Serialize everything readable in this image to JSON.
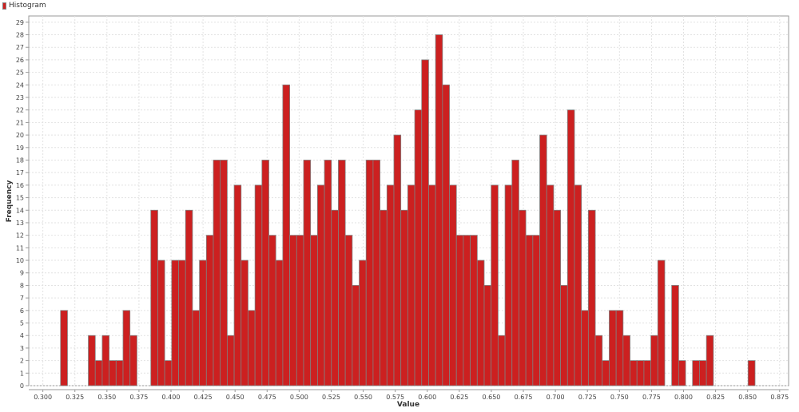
{
  "chart_data": {
    "type": "bar",
    "title": "",
    "xlabel": "Value",
    "ylabel": "Frequency",
    "legend": {
      "entries": [
        "Histogram"
      ],
      "placement": "top-left"
    },
    "series": [
      {
        "name": "Histogram",
        "color": "#cc2020",
        "outline": "#808080"
      }
    ],
    "bin_start": 0.3138,
    "bin_width": 0.00542,
    "values": [
      6,
      0,
      0,
      0,
      4,
      2,
      4,
      2,
      2,
      6,
      4,
      0,
      0,
      14,
      10,
      2,
      10,
      10,
      14,
      6,
      10,
      12,
      18,
      18,
      4,
      16,
      10,
      6,
      16,
      18,
      12,
      10,
      24,
      12,
      12,
      18,
      12,
      16,
      18,
      14,
      18,
      12,
      8,
      10,
      18,
      18,
      14,
      16,
      20,
      14,
      16,
      22,
      26,
      16,
      28,
      24,
      16,
      12,
      12,
      12,
      10,
      8,
      16,
      4,
      16,
      18,
      14,
      12,
      12,
      20,
      16,
      14,
      8,
      22,
      16,
      6,
      14,
      4,
      2,
      6,
      6,
      4,
      2,
      2,
      2,
      4,
      10,
      0,
      8,
      2,
      0,
      2,
      2,
      4,
      0,
      0,
      0,
      0,
      0,
      2
    ],
    "xlim": [
      0.289,
      0.882
    ],
    "ylim": [
      0,
      29.5
    ],
    "x_ticks": [
      "0.300",
      "0.325",
      "0.350",
      "0.375",
      "0.400",
      "0.425",
      "0.450",
      "0.475",
      "0.500",
      "0.525",
      "0.550",
      "0.575",
      "0.600",
      "0.625",
      "0.650",
      "0.675",
      "0.700",
      "0.725",
      "0.750",
      "0.775",
      "0.800",
      "0.825",
      "0.850",
      "0.875"
    ],
    "y_ticks": [
      "0",
      "1",
      "2",
      "3",
      "4",
      "5",
      "6",
      "7",
      "8",
      "9",
      "10",
      "11",
      "12",
      "13",
      "14",
      "15",
      "16",
      "17",
      "18",
      "19",
      "20",
      "21",
      "22",
      "23",
      "24",
      "25",
      "26",
      "27",
      "28",
      "29"
    ],
    "grid": true
  }
}
